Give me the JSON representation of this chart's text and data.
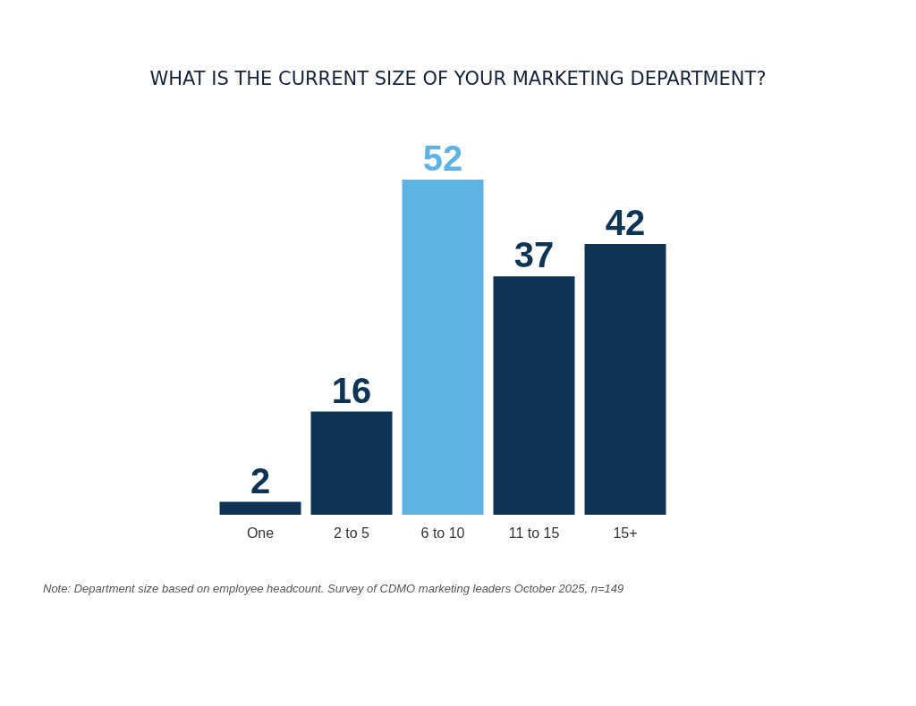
{
  "chart_data": {
    "type": "bar",
    "title": "WHAT IS THE CURRENT SIZE OF YOUR MARKETING DEPARTMENT?",
    "categories": [
      "One",
      "2 to 5",
      "6 to 10",
      "11 to 15",
      "15+"
    ],
    "values": [
      2,
      16,
      52,
      37,
      42
    ],
    "colors": [
      "#0e3455",
      "#0e3455",
      "#5fb3e4",
      "#0e3455",
      "#0e3455"
    ],
    "data_labels": true,
    "annotations": [
      "Note: Department size based on employee headcount. Survey of CDMO marketing leaders October 2025, n=149"
    ]
  }
}
